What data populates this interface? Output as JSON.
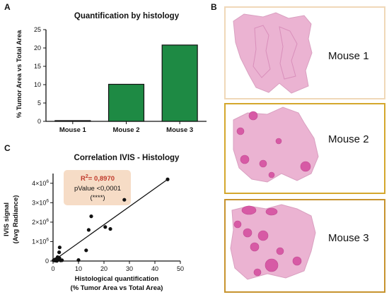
{
  "panels": {
    "a": "A",
    "b": "B",
    "c": "C"
  },
  "chart_data": [
    {
      "type": "bar",
      "title": "Quantification by histology",
      "xlabel": "",
      "ylabel": "% Tumor Area vs Total Area",
      "categories": [
        "Mouse 1",
        "Mouse 2",
        "Mouse 3"
      ],
      "values": [
        0.2,
        10.1,
        20.8
      ],
      "ylim": [
        0,
        25
      ],
      "yticks": [
        "0",
        "5",
        "10",
        "15",
        "20",
        "25"
      ],
      "bar_color": "#1e8a44",
      "grid": false
    },
    {
      "type": "scatter",
      "title": "Correlation IVIS - Histology",
      "xlabel_line1": "Histological quantification",
      "xlabel_line2": "(% Tumor Area vs Total Area)",
      "ylabel_line1": "IVIS signal",
      "ylabel_line2": "(Avg Radiance)",
      "xlim": [
        0,
        50
      ],
      "ylim": [
        0,
        4500000
      ],
      "xticks": [
        "0",
        "10",
        "20",
        "30",
        "40",
        "50"
      ],
      "yticks": [
        "0",
        "1×10",
        "2×10",
        "3×10",
        "4×10"
      ],
      "ytick_exponent": "6",
      "points": [
        {
          "x": 0.2,
          "y": 30000
        },
        {
          "x": 0.5,
          "y": 60000
        },
        {
          "x": 0.8,
          "y": 20000
        },
        {
          "x": 1.0,
          "y": 90000
        },
        {
          "x": 1.2,
          "y": 40000
        },
        {
          "x": 1.5,
          "y": 10000
        },
        {
          "x": 2.0,
          "y": 60000
        },
        {
          "x": 2.5,
          "y": 150000
        },
        {
          "x": 3.0,
          "y": 30000
        },
        {
          "x": 1.8,
          "y": 200000
        },
        {
          "x": 2.4,
          "y": 450000
        },
        {
          "x": 2.6,
          "y": 700000
        },
        {
          "x": 3.5,
          "y": 40000
        },
        {
          "x": 10.0,
          "y": 50000
        },
        {
          "x": 13.0,
          "y": 550000
        },
        {
          "x": 14.0,
          "y": 1600000
        },
        {
          "x": 15.0,
          "y": 2300000
        },
        {
          "x": 20.5,
          "y": 1750000
        },
        {
          "x": 22.5,
          "y": 1650000
        },
        {
          "x": 28.0,
          "y": 3150000
        },
        {
          "x": 45.0,
          "y": 4200000
        }
      ],
      "fit_line": [
        {
          "x": 0,
          "y": 0
        },
        {
          "x": 45,
          "y": 4200000
        }
      ],
      "annotation": {
        "r2_prefix": "R",
        "r2_sup": "2",
        "r2_value": "= 0,8970",
        "pvalue": "pValue <0,0001",
        "stars": "(****)",
        "box_color": "#f6dcc6",
        "r2_color": "#c0392b"
      }
    }
  ],
  "histology": {
    "items": [
      {
        "label": "Mouse 1",
        "frame_color": "#f0d8b8"
      },
      {
        "label": "Mouse 2",
        "frame_color": "#d4a72c"
      },
      {
        "label": "Mouse 3",
        "frame_color": "#c7932e"
      }
    ],
    "tissue_color": "#ebb3d2",
    "tumor_color": "#d75aa5"
  }
}
